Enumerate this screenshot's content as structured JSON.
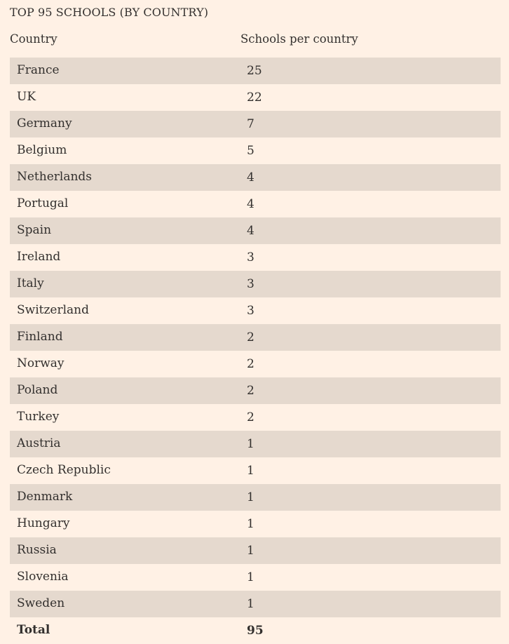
{
  "title": "TOP 95 SCHOOLS (BY COUNTRY)",
  "columns": {
    "country": "Country",
    "count": "Schools per country"
  },
  "rows": [
    {
      "country": "France",
      "count": "25"
    },
    {
      "country": "UK",
      "count": "22"
    },
    {
      "country": "Germany",
      "count": "7"
    },
    {
      "country": "Belgium",
      "count": "5"
    },
    {
      "country": "Netherlands",
      "count": "4"
    },
    {
      "country": "Portugal",
      "count": "4"
    },
    {
      "country": "Spain",
      "count": "4"
    },
    {
      "country": "Ireland",
      "count": "3"
    },
    {
      "country": "Italy",
      "count": "3"
    },
    {
      "country": "Switzerland",
      "count": "3"
    },
    {
      "country": "Finland",
      "count": "2"
    },
    {
      "country": "Norway",
      "count": "2"
    },
    {
      "country": "Poland",
      "count": "2"
    },
    {
      "country": "Turkey",
      "count": "2"
    },
    {
      "country": "Austria",
      "count": "1"
    },
    {
      "country": "Czech Republic",
      "count": "1"
    },
    {
      "country": "Denmark",
      "count": "1"
    },
    {
      "country": "Hungary",
      "count": "1"
    },
    {
      "country": "Russia",
      "count": "1"
    },
    {
      "country": "Slovenia",
      "count": "1"
    },
    {
      "country": "Sweden",
      "count": "1"
    }
  ],
  "total": {
    "label": "Total",
    "count": "95"
  },
  "colors": {
    "background": "#fff1e5",
    "shaded_row": "#e5d9ce",
    "text": "#33302e"
  }
}
